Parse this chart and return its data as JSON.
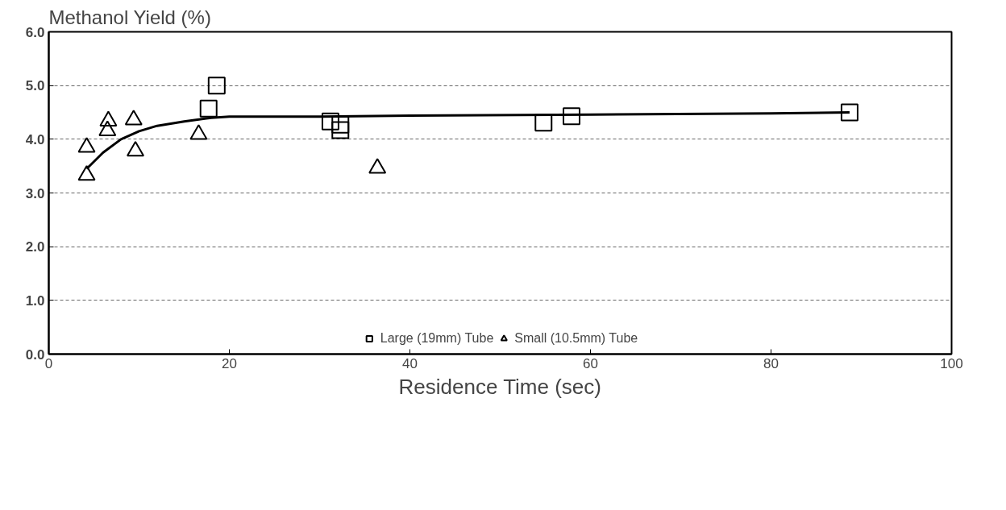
{
  "chart_data": {
    "type": "scatter",
    "title": "Methanol Yield (%)",
    "xlabel": "Residence Time (sec)",
    "xlim": [
      0,
      100
    ],
    "xticks": [
      0,
      20,
      40,
      60,
      80,
      100
    ],
    "ylim": [
      0,
      6
    ],
    "yticks": [
      {
        "value": 0,
        "label": "0.0"
      },
      {
        "value": 1,
        "label": "1.0"
      },
      {
        "value": 2,
        "label": "2.0"
      },
      {
        "value": 3,
        "label": "3.0"
      },
      {
        "value": 4,
        "label": "4.0"
      },
      {
        "value": 5,
        "label": "5.0"
      },
      {
        "value": 6,
        "label": "6.0"
      }
    ],
    "grid": "y",
    "legend": "bottom",
    "series": [
      {
        "name": "Large (19mm) Tube",
        "marker": "square",
        "color": "#000000",
        "x": [
          18.6,
          17.7,
          31.2,
          32.3,
          32.3,
          54.8,
          57.9,
          88.7
        ],
        "values": [
          5.0,
          4.57,
          4.33,
          4.27,
          4.17,
          4.31,
          4.43,
          4.5
        ]
      },
      {
        "name": "Small (10.5mm) Tube",
        "marker": "triangle",
        "color": "#000000",
        "x": [
          4.2,
          4.2,
          6.6,
          6.5,
          9.4,
          9.6,
          16.6,
          36.4
        ],
        "values": [
          3.85,
          3.33,
          4.34,
          4.16,
          4.36,
          3.78,
          4.09,
          3.46
        ]
      },
      {
        "type": "line",
        "color": "#000000",
        "x": [
          4.2,
          6,
          8,
          10,
          12,
          15,
          18,
          20,
          30,
          40,
          60,
          80,
          88.7
        ],
        "values": [
          3.45,
          3.75,
          4.0,
          4.15,
          4.25,
          4.33,
          4.4,
          4.42,
          4.42,
          4.44,
          4.46,
          4.48,
          4.5
        ]
      }
    ]
  }
}
